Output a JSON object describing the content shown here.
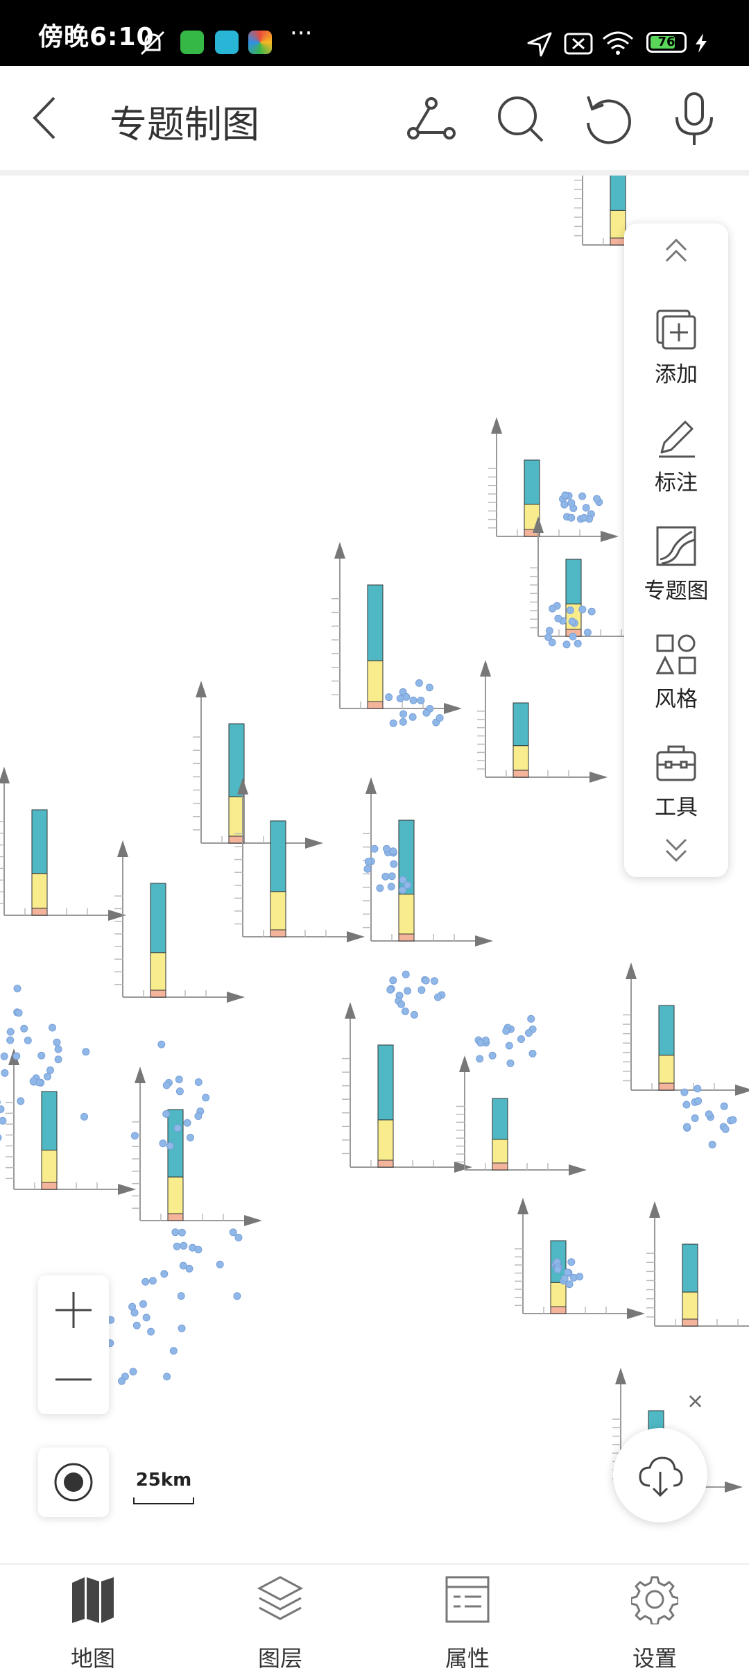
{
  "status_bar": {
    "time": "傍晚6:10",
    "more": "···",
    "battery_level": "76",
    "battery_fraction": 0.76
  },
  "app_bar": {
    "title": "专题制图",
    "tools": [
      "back-icon",
      "measure-icon",
      "search-icon",
      "undo-icon",
      "microphone-icon"
    ]
  },
  "side_panel": {
    "items": [
      {
        "label": "添加",
        "icon": "add-layer-icon"
      },
      {
        "label": "标注",
        "icon": "pencil-icon"
      },
      {
        "label": "专题图",
        "icon": "thematic-map-icon"
      },
      {
        "label": "风格",
        "icon": "style-shapes-icon"
      },
      {
        "label": "工具",
        "icon": "toolbox-icon"
      }
    ]
  },
  "map": {
    "scale_label": "25km",
    "colors": {
      "bar_top": "#4fb8c4",
      "bar_mid": "#f8ec8c",
      "bar_base": "#f4b49c",
      "points": "#8fb8e8"
    }
  },
  "bottom_nav": {
    "items": [
      {
        "label": "地图",
        "icon": "map-icon"
      },
      {
        "label": "图层",
        "icon": "layers-icon"
      },
      {
        "label": "属性",
        "icon": "attributes-icon"
      },
      {
        "label": "设置",
        "icon": "settings-icon"
      }
    ]
  }
}
